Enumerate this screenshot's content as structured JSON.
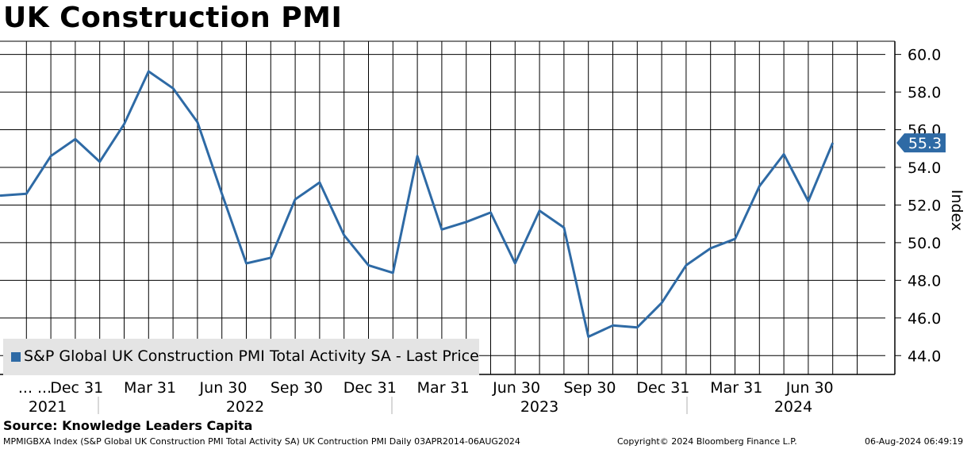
{
  "title": "UK Construction PMI",
  "source": "Source: Knowledge Leaders Capita",
  "footer": {
    "left": "MPMIGBXA Index (S&P Global UK Construction PMI Total Activity SA) UK Contruction PMI  Daily 03APR2014-06AUG2024",
    "copyright": "Copyright© 2024 Bloomberg Finance L.P.",
    "timestamp": "06-Aug-2024 06:49:19"
  },
  "chart_data": {
    "type": "line",
    "ylabel": "Index",
    "ylim": [
      43.0,
      60.7
    ],
    "yticks": [
      "60.0",
      "58.0",
      "56.0",
      "54.0",
      "52.0",
      "50.0",
      "48.0",
      "46.0",
      "44.0"
    ],
    "x_tick_labels": [
      "... ...",
      "Dec 31",
      "Mar 31",
      "Jun 30",
      "Sep 30",
      "Dec 31",
      "Mar 31",
      "Jun 30",
      "Sep 30",
      "Dec 31",
      "Mar 31",
      "Jun 30"
    ],
    "year_labels": [
      "2021",
      "2022",
      "2023",
      "2024"
    ],
    "grid": true,
    "last_value": "55.3",
    "legend_position": "bottom-left",
    "series": [
      {
        "name": "S&P Global UK Construction PMI Total Activity SA - Last Price",
        "color": "#2e6aa5",
        "x": [
          "2021-09",
          "2021-10",
          "2021-11",
          "2021-12",
          "2022-01",
          "2022-02",
          "2022-03",
          "2022-04",
          "2022-05",
          "2022-06",
          "2022-07",
          "2022-08",
          "2022-09",
          "2022-10",
          "2022-11",
          "2022-12",
          "2023-01",
          "2023-02",
          "2023-03",
          "2023-04",
          "2023-05",
          "2023-06",
          "2023-07",
          "2023-08",
          "2023-09",
          "2023-10",
          "2023-11",
          "2023-12",
          "2024-01",
          "2024-02",
          "2024-03",
          "2024-04",
          "2024-05",
          "2024-06",
          "2024-07"
        ],
        "values": [
          52.5,
          52.6,
          54.6,
          55.5,
          54.3,
          56.3,
          59.1,
          58.2,
          56.4,
          52.6,
          48.9,
          49.2,
          52.3,
          53.2,
          50.4,
          48.8,
          48.4,
          54.6,
          50.7,
          51.1,
          51.6,
          48.9,
          51.7,
          50.8,
          45.0,
          45.6,
          45.5,
          46.8,
          48.8,
          49.7,
          50.2,
          53.0,
          54.7,
          52.2,
          55.3
        ]
      }
    ]
  }
}
